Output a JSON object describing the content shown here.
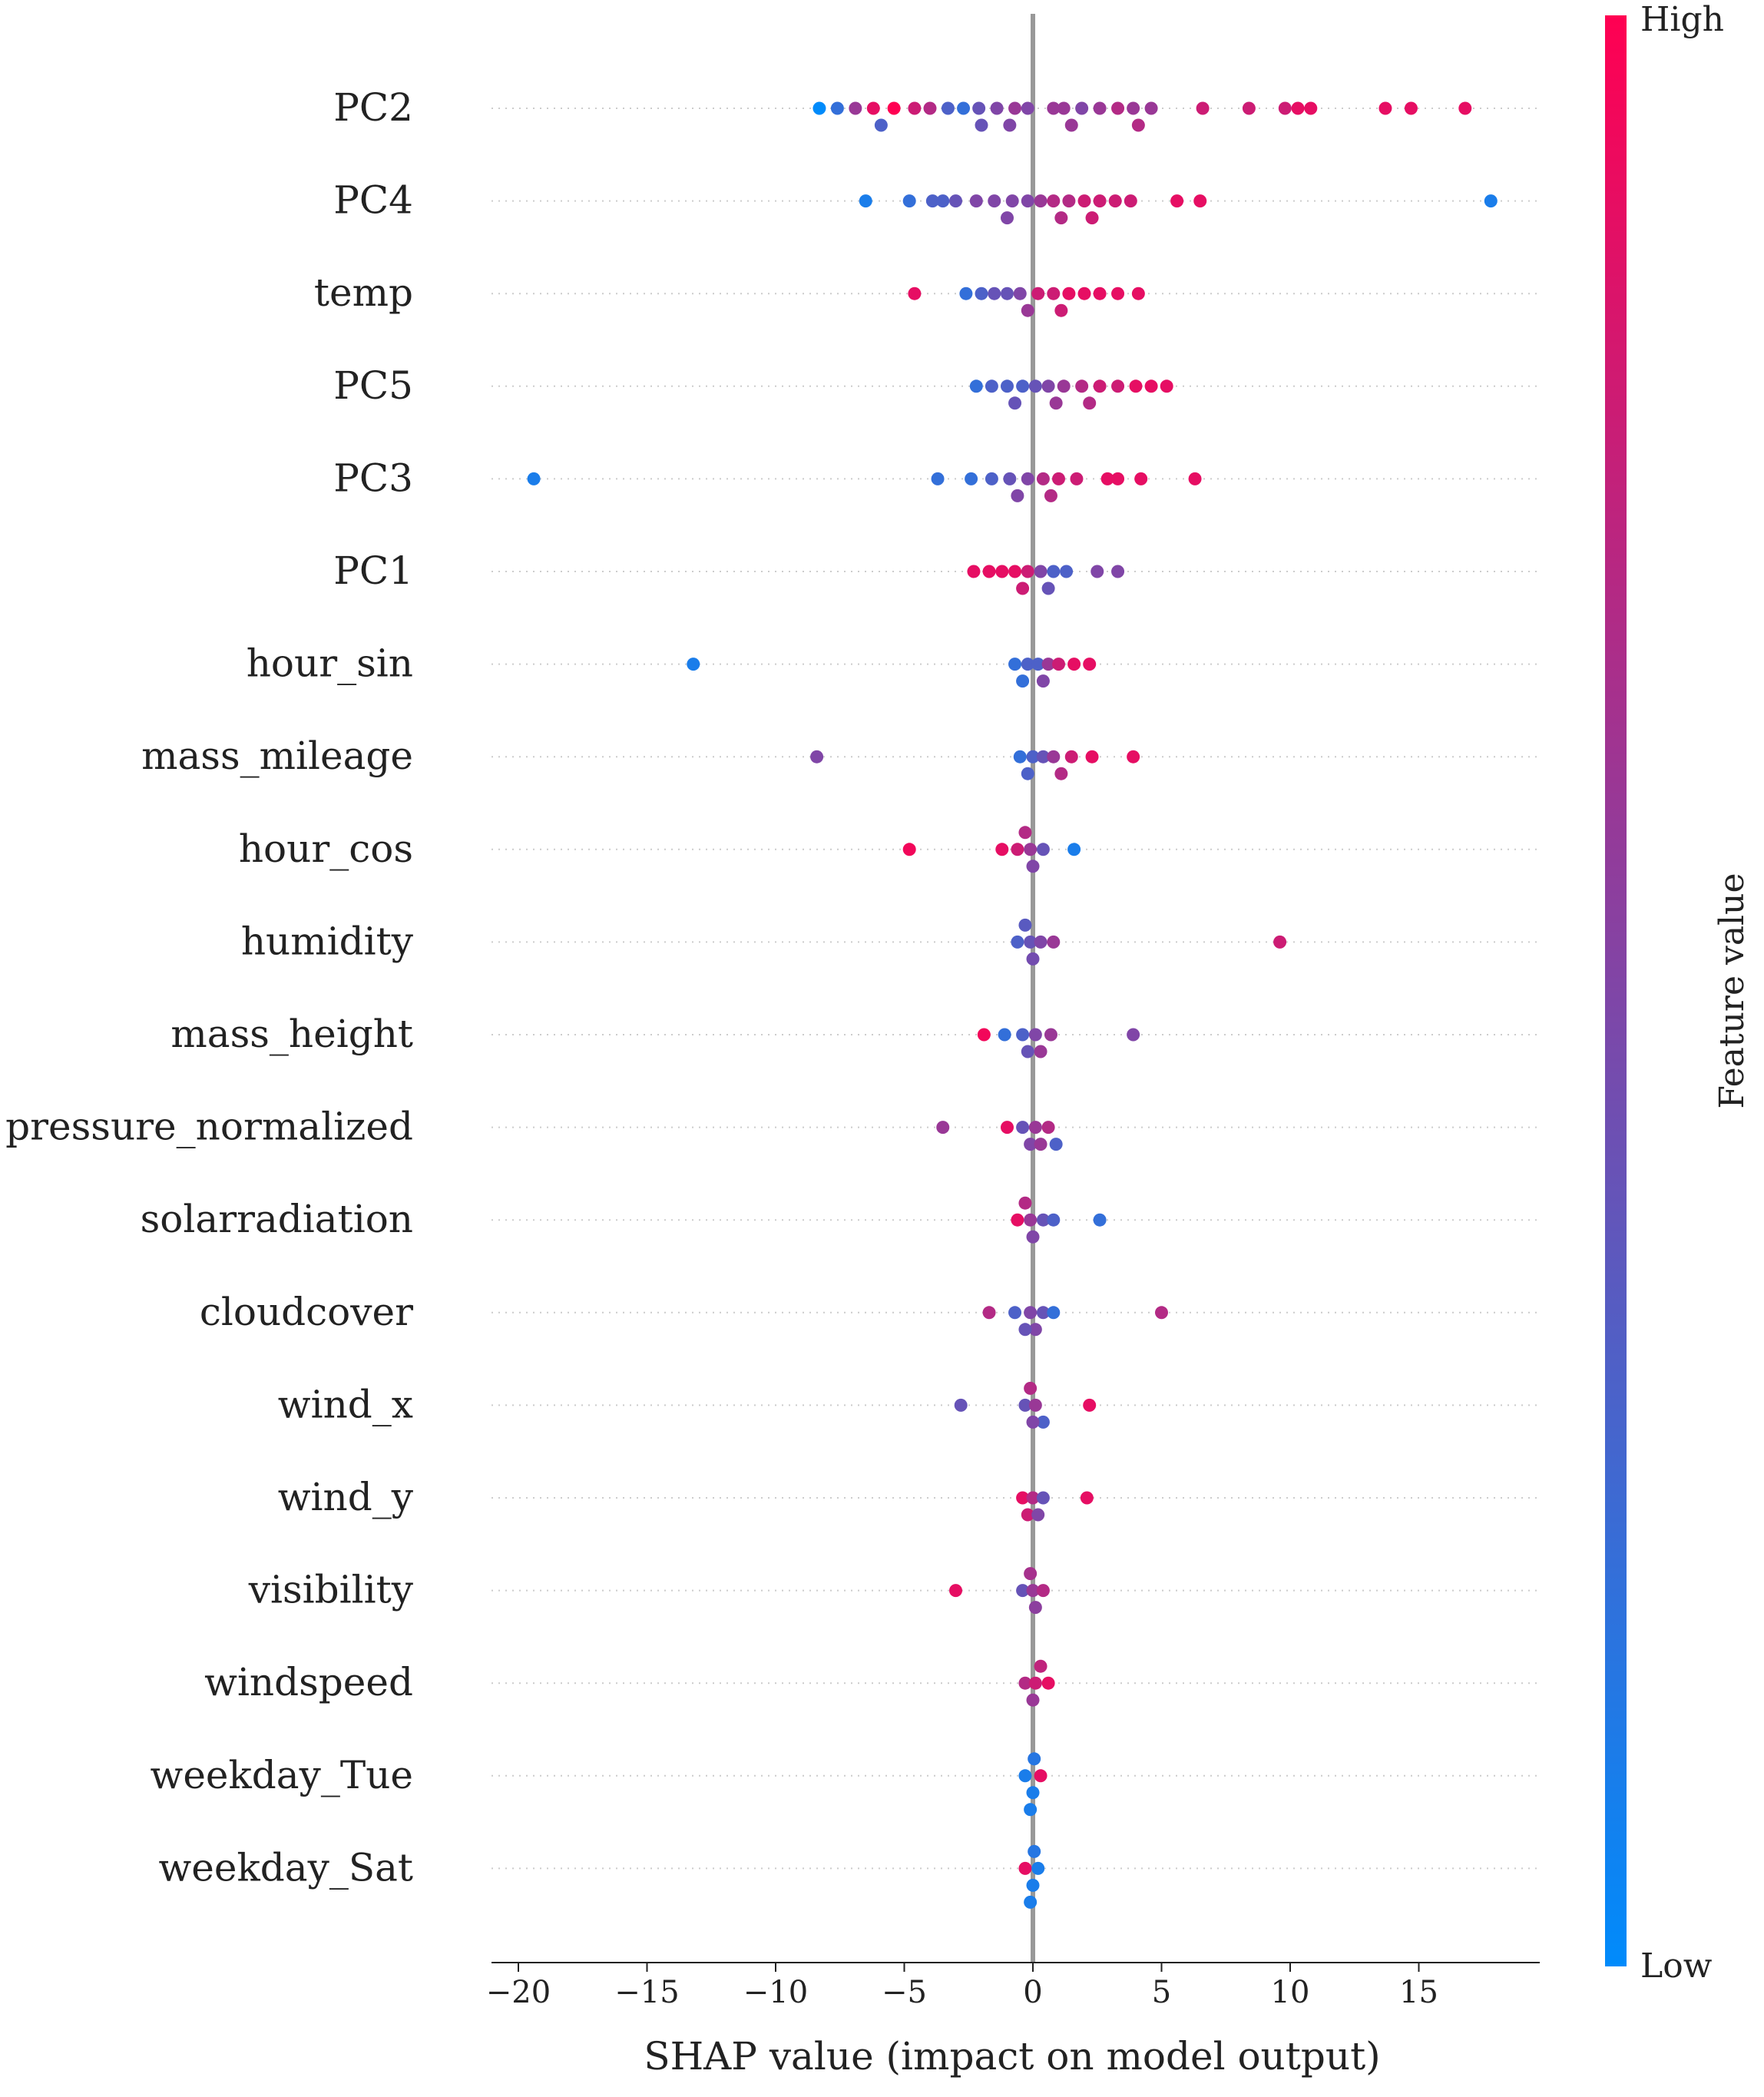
{
  "chart_data": {
    "type": "scatter",
    "title": "",
    "xlabel": "SHAP value (impact on model output)",
    "xlim": [
      -21,
      19.5
    ],
    "xticks": [
      -20,
      -15,
      -10,
      -5,
      0,
      5,
      10,
      15
    ],
    "xtick_labels": [
      "−20",
      "−15",
      "−10",
      "−5",
      "0",
      "5",
      "10",
      "15"
    ],
    "colorbar": {
      "title": "Feature value",
      "high_label": "High",
      "low_label": "Low",
      "low_color": "#008bfb",
      "high_color": "#ff0052"
    },
    "features": [
      {
        "name": "PC2",
        "points": [
          [
            -8.3,
            0.0
          ],
          [
            -7.6,
            0.2
          ],
          [
            -6.9,
            0.6
          ],
          [
            -6.2,
            0.9
          ],
          [
            -5.4,
            1.0
          ],
          [
            -4.6,
            0.8
          ],
          [
            -4.0,
            0.7
          ],
          [
            -3.3,
            0.3
          ],
          [
            -2.7,
            0.2
          ],
          [
            -2.1,
            0.4
          ],
          [
            -1.4,
            0.5
          ],
          [
            -0.7,
            0.6
          ],
          [
            -0.2,
            0.5
          ],
          [
            1.2,
            0.6
          ],
          [
            1.9,
            0.5
          ],
          [
            2.6,
            0.6
          ],
          [
            3.3,
            0.7
          ],
          [
            3.9,
            0.6
          ],
          [
            4.6,
            0.6
          ],
          [
            6.6,
            0.8
          ],
          [
            8.4,
            0.8
          ],
          [
            9.8,
            0.8
          ],
          [
            10.3,
            0.9
          ],
          [
            10.8,
            0.9
          ],
          [
            13.7,
            0.9
          ],
          [
            14.7,
            0.9
          ],
          [
            16.8,
            0.9
          ],
          [
            -5.9,
            0.3
          ],
          [
            -2.0,
            0.4
          ],
          [
            -0.9,
            0.5
          ],
          [
            0.8,
            0.6
          ],
          [
            1.5,
            0.6
          ],
          [
            4.1,
            0.7
          ]
        ]
      },
      {
        "name": "PC4",
        "points": [
          [
            -6.5,
            0.1
          ],
          [
            -4.8,
            0.2
          ],
          [
            -3.9,
            0.3
          ],
          [
            -3.0,
            0.4
          ],
          [
            -2.2,
            0.5
          ],
          [
            -1.5,
            0.5
          ],
          [
            -0.8,
            0.5
          ],
          [
            -0.2,
            0.5
          ],
          [
            0.3,
            0.6
          ],
          [
            0.8,
            0.7
          ],
          [
            1.4,
            0.7
          ],
          [
            2.0,
            0.8
          ],
          [
            2.6,
            0.8
          ],
          [
            3.2,
            0.8
          ],
          [
            3.8,
            0.8
          ],
          [
            5.6,
            0.9
          ],
          [
            6.5,
            0.9
          ],
          [
            17.8,
            0.1
          ],
          [
            -3.5,
            0.3
          ],
          [
            -1.0,
            0.5
          ],
          [
            1.1,
            0.7
          ],
          [
            2.3,
            0.8
          ]
        ]
      },
      {
        "name": "temp",
        "points": [
          [
            -4.6,
            0.9
          ],
          [
            -2.6,
            0.2
          ],
          [
            -2.0,
            0.3
          ],
          [
            -1.5,
            0.4
          ],
          [
            -1.0,
            0.4
          ],
          [
            -0.5,
            0.5
          ],
          [
            0.2,
            0.8
          ],
          [
            0.8,
            0.8
          ],
          [
            1.4,
            0.9
          ],
          [
            2.0,
            0.9
          ],
          [
            2.6,
            0.9
          ],
          [
            3.3,
            0.9
          ],
          [
            4.1,
            0.9
          ],
          [
            1.1,
            0.8
          ],
          [
            -0.2,
            0.6
          ]
        ]
      },
      {
        "name": "PC5",
        "points": [
          [
            -2.2,
            0.2
          ],
          [
            -1.6,
            0.3
          ],
          [
            -1.0,
            0.3
          ],
          [
            -0.4,
            0.3
          ],
          [
            0.1,
            0.4
          ],
          [
            0.6,
            0.5
          ],
          [
            1.2,
            0.6
          ],
          [
            1.9,
            0.7
          ],
          [
            2.6,
            0.8
          ],
          [
            3.3,
            0.8
          ],
          [
            4.0,
            0.9
          ],
          [
            4.6,
            0.9
          ],
          [
            5.2,
            0.9
          ],
          [
            -0.7,
            0.4
          ],
          [
            0.9,
            0.6
          ],
          [
            2.2,
            0.7
          ]
        ]
      },
      {
        "name": "PC3",
        "points": [
          [
            -19.4,
            0.1
          ],
          [
            -3.7,
            0.2
          ],
          [
            -2.4,
            0.2
          ],
          [
            -1.6,
            0.3
          ],
          [
            -0.9,
            0.4
          ],
          [
            -0.2,
            0.5
          ],
          [
            0.4,
            0.7
          ],
          [
            1.0,
            0.8
          ],
          [
            1.7,
            0.8
          ],
          [
            2.9,
            0.9
          ],
          [
            3.3,
            0.9
          ],
          [
            4.2,
            0.9
          ],
          [
            6.3,
            0.9
          ],
          [
            -0.6,
            0.5
          ],
          [
            0.7,
            0.7
          ]
        ]
      },
      {
        "name": "PC1",
        "points": [
          [
            -2.3,
            0.9
          ],
          [
            -1.7,
            0.9
          ],
          [
            -1.2,
            0.9
          ],
          [
            -0.7,
            0.9
          ],
          [
            -0.2,
            0.8
          ],
          [
            0.3,
            0.5
          ],
          [
            0.8,
            0.3
          ],
          [
            1.3,
            0.3
          ],
          [
            2.5,
            0.5
          ],
          [
            3.3,
            0.5
          ],
          [
            -0.4,
            0.8
          ],
          [
            0.6,
            0.4
          ]
        ]
      },
      {
        "name": "hour_sin",
        "points": [
          [
            -13.2,
            0.1
          ],
          [
            -0.7,
            0.2
          ],
          [
            -0.2,
            0.3
          ],
          [
            0.2,
            0.3
          ],
          [
            0.6,
            0.6
          ],
          [
            1.0,
            0.8
          ],
          [
            1.6,
            0.9
          ],
          [
            2.2,
            0.9
          ],
          [
            -0.4,
            0.2
          ],
          [
            0.4,
            0.5
          ]
        ]
      },
      {
        "name": "mass_mileage",
        "points": [
          [
            -8.4,
            0.5
          ],
          [
            -0.5,
            0.2
          ],
          [
            0.0,
            0.3
          ],
          [
            0.4,
            0.4
          ],
          [
            0.8,
            0.6
          ],
          [
            1.5,
            0.8
          ],
          [
            2.3,
            0.9
          ],
          [
            3.9,
            0.9
          ],
          [
            -0.2,
            0.3
          ],
          [
            1.1,
            0.7
          ]
        ]
      },
      {
        "name": "hour_cos",
        "points": [
          [
            -4.8,
            0.95
          ],
          [
            -1.2,
            0.9
          ],
          [
            -0.6,
            0.8
          ],
          [
            -0.1,
            0.6
          ],
          [
            0.4,
            0.4
          ],
          [
            1.6,
            0.1
          ],
          [
            0.0,
            0.5
          ],
          [
            -0.3,
            0.7
          ]
        ]
      },
      {
        "name": "humidity",
        "points": [
          [
            -0.6,
            0.3
          ],
          [
            -0.1,
            0.4
          ],
          [
            0.3,
            0.5
          ],
          [
            0.8,
            0.6
          ],
          [
            9.6,
            0.8
          ],
          [
            0.0,
            0.45
          ],
          [
            -0.3,
            0.35
          ]
        ]
      },
      {
        "name": "mass_height",
        "points": [
          [
            -1.9,
            0.95
          ],
          [
            -1.1,
            0.2
          ],
          [
            -0.4,
            0.3
          ],
          [
            0.1,
            0.5
          ],
          [
            0.7,
            0.6
          ],
          [
            3.9,
            0.5
          ],
          [
            0.3,
            0.6
          ],
          [
            -0.2,
            0.4
          ]
        ]
      },
      {
        "name": "pressure_normalized",
        "points": [
          [
            -3.5,
            0.6
          ],
          [
            -1.0,
            0.9
          ],
          [
            -0.4,
            0.4
          ],
          [
            0.1,
            0.6
          ],
          [
            0.6,
            0.7
          ],
          [
            0.9,
            0.3
          ],
          [
            -0.1,
            0.5
          ],
          [
            0.3,
            0.6
          ]
        ]
      },
      {
        "name": "solarradiation",
        "points": [
          [
            -0.6,
            0.9
          ],
          [
            -0.1,
            0.6
          ],
          [
            0.4,
            0.4
          ],
          [
            0.8,
            0.3
          ],
          [
            2.6,
            0.2
          ],
          [
            0.0,
            0.5
          ],
          [
            -0.3,
            0.7
          ]
        ]
      },
      {
        "name": "cloudcover",
        "points": [
          [
            -1.7,
            0.7
          ],
          [
            -0.7,
            0.3
          ],
          [
            -0.1,
            0.5
          ],
          [
            0.4,
            0.4
          ],
          [
            0.8,
            0.2
          ],
          [
            5.0,
            0.7
          ],
          [
            0.1,
            0.5
          ],
          [
            -0.3,
            0.4
          ]
        ]
      },
      {
        "name": "wind_x",
        "points": [
          [
            -2.8,
            0.4
          ],
          [
            -0.3,
            0.4
          ],
          [
            0.1,
            0.6
          ],
          [
            0.4,
            0.3
          ],
          [
            2.2,
            0.9
          ],
          [
            0.0,
            0.5
          ],
          [
            -0.1,
            0.7
          ]
        ]
      },
      {
        "name": "wind_y",
        "points": [
          [
            -0.4,
            0.9
          ],
          [
            0.0,
            0.7
          ],
          [
            0.4,
            0.4
          ],
          [
            2.1,
            0.9
          ],
          [
            -0.2,
            0.8
          ],
          [
            0.2,
            0.5
          ]
        ]
      },
      {
        "name": "visibility",
        "points": [
          [
            -3.0,
            0.9
          ],
          [
            -0.4,
            0.4
          ],
          [
            0.0,
            0.6
          ],
          [
            0.4,
            0.7
          ],
          [
            0.1,
            0.55
          ],
          [
            -0.1,
            0.65
          ]
        ]
      },
      {
        "name": "windspeed",
        "points": [
          [
            -0.3,
            0.7
          ],
          [
            0.1,
            0.8
          ],
          [
            0.6,
            0.9
          ],
          [
            0.0,
            0.6
          ],
          [
            0.3,
            0.75
          ]
        ]
      },
      {
        "name": "weekday_Tue",
        "points": [
          [
            -0.3,
            0.1
          ],
          [
            0.0,
            0.1
          ],
          [
            0.3,
            0.9
          ],
          [
            0.05,
            0.15
          ],
          [
            -0.1,
            0.1
          ]
        ]
      },
      {
        "name": "weekday_Sat",
        "points": [
          [
            -0.3,
            0.9
          ],
          [
            0.0,
            0.1
          ],
          [
            0.2,
            0.1
          ],
          [
            0.05,
            0.15
          ],
          [
            -0.1,
            0.1
          ]
        ]
      }
    ]
  }
}
